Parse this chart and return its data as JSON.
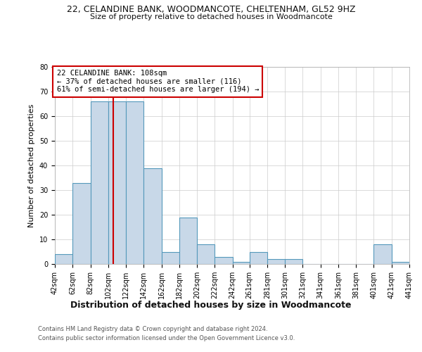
{
  "title_line1": "22, CELANDINE BANK, WOODMANCOTE, CHELTENHAM, GL52 9HZ",
  "title_line2": "Size of property relative to detached houses in Woodmancote",
  "xlabel": "Distribution of detached houses by size in Woodmancote",
  "ylabel": "Number of detached properties",
  "footer_line1": "Contains HM Land Registry data © Crown copyright and database right 2024.",
  "footer_line2": "Contains public sector information licensed under the Open Government Licence v3.0.",
  "annotation_line1": "22 CELANDINE BANK: 108sqm",
  "annotation_line2": "← 37% of detached houses are smaller (116)",
  "annotation_line3": "61% of semi-detached houses are larger (194) →",
  "bar_color": "#c8d8e8",
  "bar_edge_color": "#5599bb",
  "property_line_color": "#cc0000",
  "property_value": 108,
  "bin_edges": [
    42,
    62,
    82,
    102,
    122,
    142,
    162,
    182,
    202,
    222,
    242,
    261,
    281,
    301,
    321,
    341,
    361,
    381,
    401,
    421,
    441
  ],
  "bar_values": [
    4,
    33,
    66,
    66,
    66,
    39,
    5,
    19,
    8,
    3,
    1,
    5,
    2,
    2,
    0,
    0,
    0,
    0,
    8,
    1
  ],
  "ylim": [
    0,
    80
  ],
  "yticks": [
    0,
    10,
    20,
    30,
    40,
    50,
    60,
    70,
    80
  ],
  "bg_color": "#ffffff",
  "grid_color": "#cccccc",
  "title1_fontsize": 9,
  "title2_fontsize": 8,
  "ylabel_fontsize": 8,
  "xlabel_fontsize": 9,
  "tick_fontsize": 7,
  "footer_fontsize": 6,
  "annotation_fontsize": 7.5
}
